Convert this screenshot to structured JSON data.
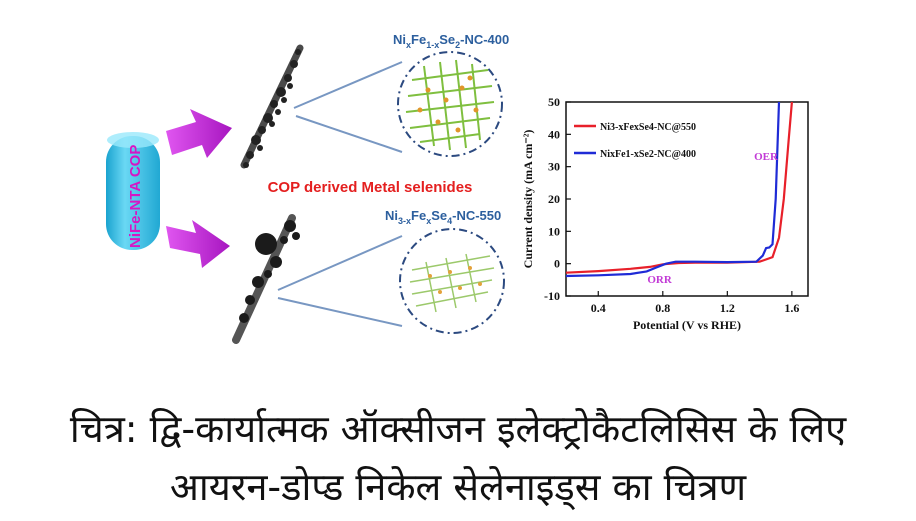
{
  "diagram": {
    "source_label": "NiFe-NTA COP",
    "center_title": "COP derived Metal selenides",
    "top_material": {
      "name": "Ni",
      "sub1": "x",
      "mid": "Fe",
      "sub2": "1-x",
      "tail": "Se",
      "sub3": "2",
      "suffix": "-NC-400"
    },
    "bottom_material": {
      "name": "Ni",
      "sub1": "3-x",
      "mid": "Fe",
      "sub2": "x",
      "tail": "Se",
      "sub3": "4",
      "suffix": "-NC-550"
    },
    "colors": {
      "arrow": "#c21ed8",
      "cylinder": "#3ec4e6",
      "title_red": "#e41f1f",
      "label_blue": "#2c5f9e",
      "lines": "#7897c2"
    }
  },
  "chart_data": {
    "type": "line",
    "xlabel": "Potential (V vs RHE)",
    "ylabel": "Current density (mA cm⁻²)",
    "xlim": [
      0.2,
      1.7
    ],
    "ylim": [
      -10,
      50
    ],
    "xticks": [
      "0.4",
      "0.8",
      "1.2",
      "1.6"
    ],
    "yticks": [
      "-10",
      "0",
      "10",
      "20",
      "30",
      "40",
      "50"
    ],
    "annotations": [
      {
        "text": "OER",
        "x": 1.44,
        "y": 32
      },
      {
        "text": "ORR",
        "x": 0.78,
        "y": -6
      }
    ],
    "legend_position": "top-left",
    "series": [
      {
        "name": "Ni3-xFexSe4-NC@550",
        "color": "#e8202a",
        "x": [
          0.2,
          0.4,
          0.6,
          0.72,
          0.8,
          0.9,
          1.0,
          1.2,
          1.4,
          1.48,
          1.52,
          1.55,
          1.58,
          1.6
        ],
        "y": [
          -2.8,
          -2.3,
          -1.6,
          -1.0,
          -0.2,
          0.2,
          0.3,
          0.3,
          0.6,
          2.0,
          8.0,
          20.0,
          38.0,
          50.0
        ]
      },
      {
        "name": "NixFe1-xSe2-NC@400",
        "color": "#1f2bd6",
        "x": [
          0.2,
          0.4,
          0.6,
          0.7,
          0.76,
          0.82,
          0.88,
          1.0,
          1.2,
          1.38,
          1.42,
          1.44,
          1.46,
          1.48,
          1.5,
          1.52
        ],
        "y": [
          -3.8,
          -3.6,
          -3.2,
          -2.4,
          -1.2,
          0.0,
          0.6,
          0.6,
          0.5,
          0.6,
          2.5,
          4.8,
          5.0,
          6.0,
          20.0,
          50.0
        ]
      }
    ]
  },
  "caption": {
    "line1": "चित्र: द्वि-कार्यात्मक ऑक्सीजन इलेक्ट्रोकैटलिसिस के लिए",
    "line2": "आयरन-डोप्ड निकेल सेलेनाइड्स का चित्रण"
  }
}
